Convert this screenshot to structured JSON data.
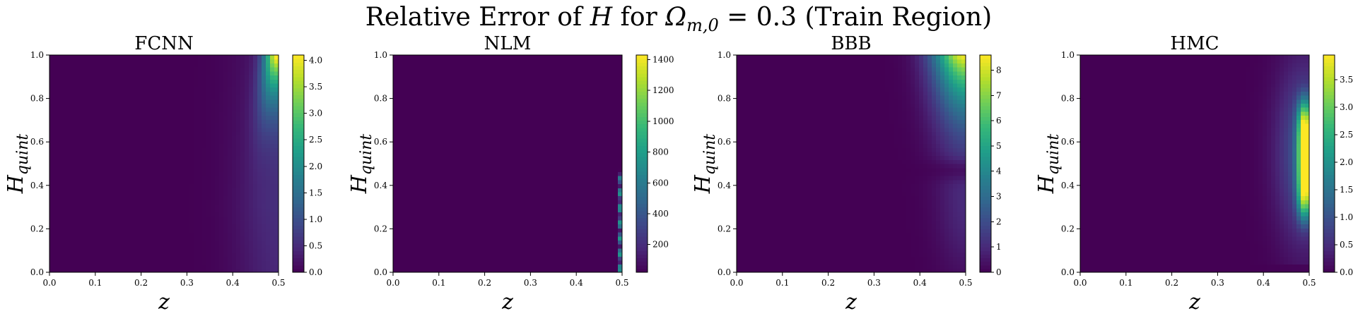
{
  "figure": {
    "title_prefix": "Relative Error of ",
    "title_var": "H",
    "title_mid": " for ",
    "title_omega": "Ω",
    "title_omega_sub": "m,0",
    "title_suffix": " = 0.3 (Train Region)"
  },
  "colormap": [
    "#440154",
    "#482878",
    "#3e4989",
    "#31688e",
    "#26828e",
    "#1f9e89",
    "#35b779",
    "#6ece58",
    "#b5de2b",
    "#fde725"
  ],
  "chart_data": [
    {
      "type": "heatmap",
      "title": "FCNN",
      "xlabel": "z",
      "ylabel_main": "H",
      "ylabel_sub": "quint",
      "xlim": [
        0,
        0.5
      ],
      "ylim": [
        0,
        1
      ],
      "xticks": [
        "0.0",
        "0.1",
        "0.2",
        "0.3",
        "0.4",
        "0.5"
      ],
      "yticks": [
        "0.0",
        "0.2",
        "0.4",
        "0.6",
        "0.8",
        "1.0"
      ],
      "colorbar": {
        "min": 0,
        "max": 4.1,
        "ticks": [
          0,
          0.5,
          1,
          1.5,
          2,
          2.5,
          3,
          3.5,
          4
        ],
        "labels": [
          "0.0",
          "0.5",
          "1.0",
          "1.5",
          "2.0",
          "2.5",
          "3.0",
          "3.5",
          "4.0"
        ]
      },
      "pattern": "fcnn"
    },
    {
      "type": "heatmap",
      "title": "NLM",
      "xlabel": "z",
      "ylabel_main": "H",
      "ylabel_sub": "quint",
      "xlim": [
        0,
        0.5
      ],
      "ylim": [
        0,
        1
      ],
      "xticks": [
        "0.0",
        "0.1",
        "0.2",
        "0.3",
        "0.4",
        "0.5"
      ],
      "yticks": [
        "0.0",
        "0.2",
        "0.4",
        "0.6",
        "0.8",
        "1.0"
      ],
      "colorbar": {
        "min": 20,
        "max": 1430,
        "ticks": [
          200,
          400,
          600,
          800,
          1000,
          1200,
          1400
        ],
        "labels": [
          "200",
          "400",
          "600",
          "800",
          "1000",
          "1200",
          "1400"
        ]
      },
      "pattern": "nlm"
    },
    {
      "type": "heatmap",
      "title": "BBB",
      "xlabel": "z",
      "ylabel_main": "H",
      "ylabel_sub": "quint",
      "xlim": [
        0,
        0.5
      ],
      "ylim": [
        0,
        1
      ],
      "xticks": [
        "0.0",
        "0.1",
        "0.2",
        "0.3",
        "0.4",
        "0.5"
      ],
      "yticks": [
        "0.0",
        "0.2",
        "0.4",
        "0.6",
        "0.8",
        "1.0"
      ],
      "colorbar": {
        "min": 0,
        "max": 8.6,
        "ticks": [
          0,
          1,
          2,
          3,
          4,
          5,
          6,
          7,
          8
        ],
        "labels": [
          "0",
          "1",
          "2",
          "3",
          "4",
          "5",
          "6",
          "7",
          "8"
        ]
      },
      "pattern": "bbb"
    },
    {
      "type": "heatmap",
      "title": "HMC",
      "xlabel": "z",
      "ylabel_main": "H",
      "ylabel_sub": "quint",
      "xlim": [
        0,
        0.5
      ],
      "ylim": [
        0,
        1
      ],
      "xticks": [
        "0.0",
        "0.1",
        "0.2",
        "0.3",
        "0.4",
        "0.5"
      ],
      "yticks": [
        "0.0",
        "0.2",
        "0.4",
        "0.6",
        "0.8",
        "1.0"
      ],
      "colorbar": {
        "min": 0,
        "max": 3.95,
        "ticks": [
          0,
          0.5,
          1,
          1.5,
          2,
          2.5,
          3,
          3.5
        ],
        "labels": [
          "0.0",
          "0.5",
          "1.0",
          "1.5",
          "2.0",
          "2.5",
          "3.0",
          "3.5"
        ]
      },
      "pattern": "hmc"
    }
  ]
}
